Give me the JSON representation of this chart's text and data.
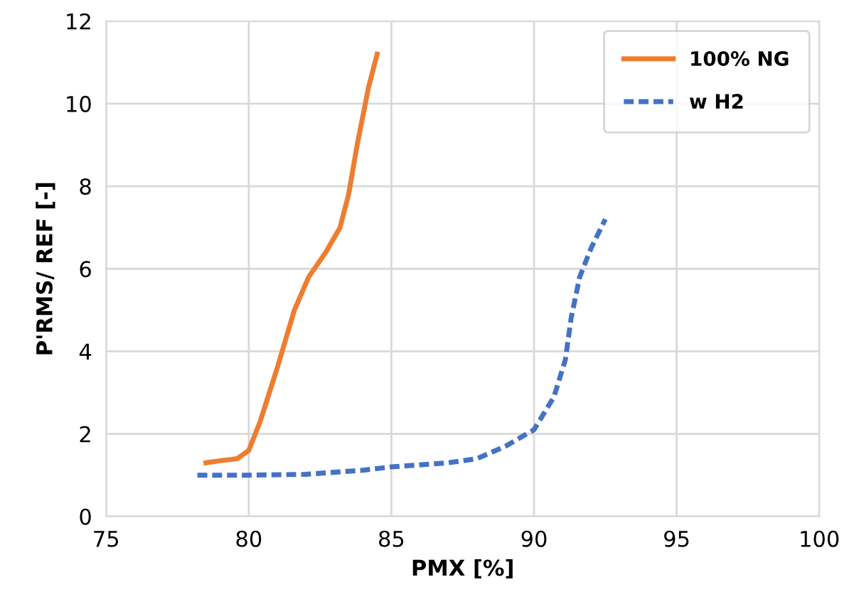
{
  "chart_data": {
    "type": "line",
    "xlabel": "PMX [%]",
    "ylabel": "P'RMS/ REF [-]",
    "xlim": [
      75,
      100
    ],
    "xticks": [
      75,
      80,
      85,
      90,
      95,
      100
    ],
    "ylim": [
      0,
      12
    ],
    "yticks": [
      0,
      2,
      4,
      6,
      8,
      10,
      12
    ],
    "grid": true,
    "legend": "top right",
    "series": [
      {
        "name": "100% NG",
        "color": "#ed7d31",
        "line_style": "solid",
        "x": [
          78.5,
          79.0,
          79.6,
          80.0,
          80.4,
          81.0,
          81.6,
          82.1,
          82.7,
          83.2,
          83.5,
          83.8,
          84.2,
          84.5
        ],
        "values": [
          1.3,
          1.35,
          1.4,
          1.6,
          2.3,
          3.6,
          5.0,
          5.8,
          6.4,
          7.0,
          7.8,
          9.0,
          10.4,
          11.2
        ]
      },
      {
        "name": "w H2",
        "color": "#4472c4",
        "line_style": "dashed",
        "x": [
          78.2,
          80.0,
          82.0,
          84.0,
          85.0,
          87.0,
          88.0,
          89.0,
          90.0,
          90.7,
          91.1,
          91.3,
          91.6,
          92.0,
          92.5
        ],
        "values": [
          1.0,
          1.0,
          1.02,
          1.12,
          1.2,
          1.3,
          1.4,
          1.7,
          2.1,
          2.9,
          3.8,
          4.8,
          5.8,
          6.5,
          7.2
        ]
      }
    ]
  }
}
